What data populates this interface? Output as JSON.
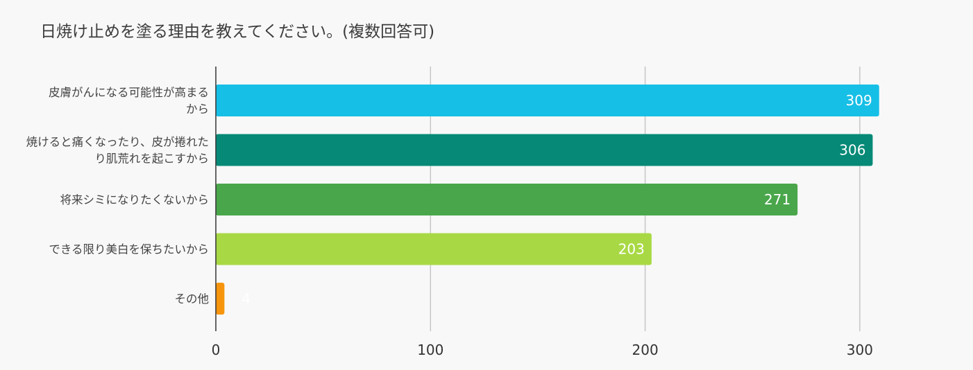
{
  "chart_data": {
    "type": "bar",
    "orientation": "horizontal",
    "title": "日焼け止めを塗る理由を教えてください。(複数回答可)",
    "categories": [
      "皮膚がんになる可能性が高まるから",
      "焼けると痛くなったり、皮が捲れたり肌荒れを起こすから",
      "将来シミになりたくないから",
      "できる限り美白を保ちたいから",
      "その他"
    ],
    "category_lines": [
      [
        "皮膚がんになる可能性が高まる",
        "から"
      ],
      [
        "焼けると痛くなったり、皮が捲れた",
        "り肌荒れを起こすから"
      ],
      [
        "将来シミになりたくないから"
      ],
      [
        "できる限り美白を保ちたいから"
      ],
      [
        "その他"
      ]
    ],
    "values": [
      309,
      306,
      271,
      203,
      4
    ],
    "data_labels": [
      "309",
      "306",
      "271",
      "203",
      "4"
    ],
    "colors": [
      "#16bfe6",
      "#068a77",
      "#4aa64b",
      "#a8d944",
      "#f6950d"
    ],
    "xlim": [
      0,
      350
    ],
    "xticks": [
      0,
      100,
      200,
      300
    ],
    "xtick_labels": [
      "0",
      "100",
      "200",
      "300"
    ],
    "grid": true,
    "xlabel": "",
    "ylabel": ""
  }
}
